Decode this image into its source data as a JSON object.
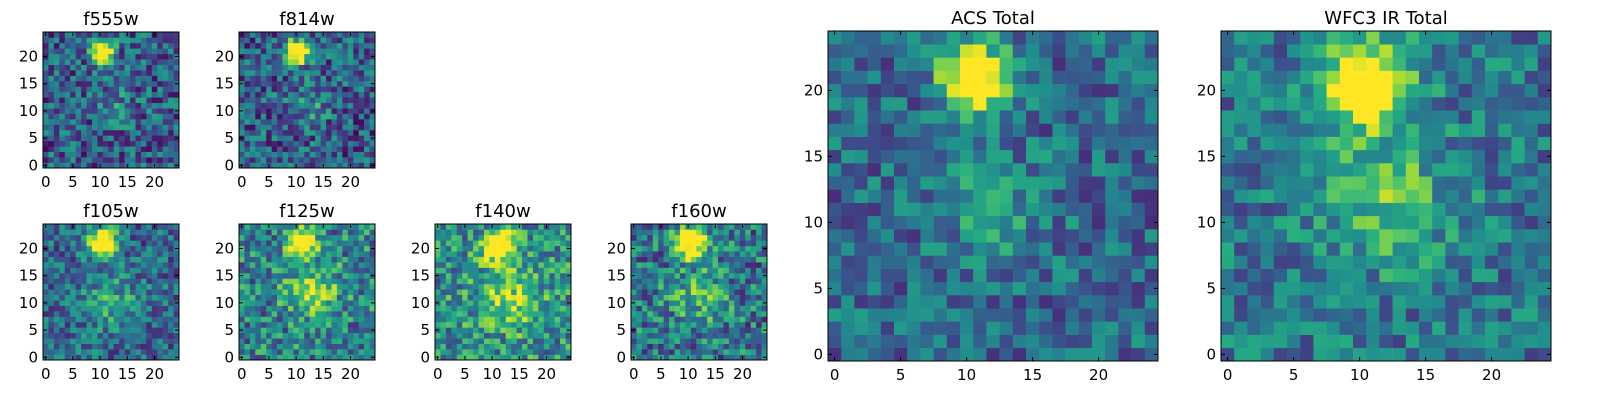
{
  "chart_data": [
    {
      "id": "f555w",
      "type": "heatmap",
      "title": "f555w",
      "xticks": [
        "0",
        "5",
        "10",
        "15",
        "20"
      ],
      "yticks": [
        "0",
        "5",
        "10",
        "15",
        "20"
      ],
      "xlim": [
        0,
        25
      ],
      "ylim": [
        0,
        25
      ],
      "colormap": "viridis",
      "source": {
        "x": 10.5,
        "y": 21,
        "strength": 1.0,
        "width": 1.5
      },
      "core": {
        "x": 13,
        "y": 11,
        "strength": 0.15,
        "width": 3
      },
      "background": 0.3,
      "noise": 0.28
    },
    {
      "id": "f814w",
      "type": "heatmap",
      "title": "f814w",
      "xticks": [
        "0",
        "5",
        "10",
        "15",
        "20"
      ],
      "yticks": [
        "0",
        "5",
        "10",
        "15",
        "20"
      ],
      "xlim": [
        0,
        25
      ],
      "ylim": [
        0,
        25
      ],
      "colormap": "viridis",
      "source": {
        "x": 10.5,
        "y": 21,
        "strength": 1.0,
        "width": 1.6
      },
      "core": {
        "x": 12,
        "y": 11,
        "strength": 0.2,
        "width": 3
      },
      "background": 0.3,
      "noise": 0.28
    },
    {
      "id": "f105w",
      "type": "heatmap",
      "title": "f105w",
      "xticks": [
        "0",
        "5",
        "10",
        "15",
        "20"
      ],
      "yticks": [
        "0",
        "5",
        "10",
        "15",
        "20"
      ],
      "xlim": [
        0,
        25
      ],
      "ylim": [
        0,
        25
      ],
      "colormap": "viridis",
      "source": {
        "x": 10.5,
        "y": 21,
        "strength": 1.0,
        "width": 1.8
      },
      "core": {
        "x": 12,
        "y": 10,
        "strength": 0.25,
        "width": 3.5
      },
      "background": 0.35,
      "noise": 0.25
    },
    {
      "id": "f125w",
      "type": "heatmap",
      "title": "f125w",
      "xticks": [
        "0",
        "5",
        "10",
        "15",
        "20"
      ],
      "yticks": [
        "0",
        "5",
        "10",
        "15",
        "20"
      ],
      "xlim": [
        0,
        25
      ],
      "ylim": [
        0,
        25
      ],
      "colormap": "viridis",
      "source": {
        "x": 11,
        "y": 21,
        "strength": 0.9,
        "width": 1.9
      },
      "core": {
        "x": 13,
        "y": 12,
        "strength": 0.35,
        "width": 3.5
      },
      "background": 0.45,
      "noise": 0.3
    },
    {
      "id": "f140w",
      "type": "heatmap",
      "title": "f140w",
      "xticks": [
        "0",
        "5",
        "10",
        "15",
        "20"
      ],
      "yticks": [
        "0",
        "5",
        "10",
        "15",
        "20"
      ],
      "xlim": [
        0,
        25
      ],
      "ylim": [
        0,
        25
      ],
      "colormap": "viridis",
      "source": {
        "x": 11.5,
        "y": 20.5,
        "strength": 0.85,
        "width": 2
      },
      "core": {
        "x": 13,
        "y": 11,
        "strength": 0.35,
        "width": 4
      },
      "background": 0.5,
      "noise": 0.3
    },
    {
      "id": "f160w",
      "type": "heatmap",
      "title": "f160w",
      "xticks": [
        "0",
        "5",
        "10",
        "15",
        "20"
      ],
      "yticks": [
        "0",
        "5",
        "10",
        "15",
        "20"
      ],
      "xlim": [
        0,
        25
      ],
      "ylim": [
        0,
        25
      ],
      "colormap": "viridis",
      "source": {
        "x": 10.5,
        "y": 21,
        "strength": 1.0,
        "width": 1.9
      },
      "core": {
        "x": 12,
        "y": 11,
        "strength": 0.3,
        "width": 3.5
      },
      "background": 0.4,
      "noise": 0.3
    },
    {
      "id": "acs_total",
      "type": "heatmap",
      "title": "ACS Total",
      "xticks": [
        "0",
        "5",
        "10",
        "15",
        "20"
      ],
      "yticks": [
        "0",
        "5",
        "10",
        "15",
        "20"
      ],
      "xlim": [
        0,
        25
      ],
      "ylim": [
        0,
        25
      ],
      "colormap": "viridis",
      "source": {
        "x": 10.5,
        "y": 21,
        "strength": 1.0,
        "width": 1.7
      },
      "core": {
        "x": 12,
        "y": 11,
        "strength": 0.2,
        "width": 3
      },
      "background": 0.35,
      "noise": 0.22
    },
    {
      "id": "wfc3_ir_total",
      "type": "heatmap",
      "title": "WFC3 IR Total",
      "xticks": [
        "0",
        "5",
        "10",
        "15",
        "20"
      ],
      "yticks": [
        "0",
        "5",
        "10",
        "15",
        "20"
      ],
      "xlim": [
        0,
        25
      ],
      "ylim": [
        0,
        25
      ],
      "colormap": "viridis",
      "source": {
        "x": 10.5,
        "y": 20.5,
        "strength": 1.0,
        "width": 2.1
      },
      "core": {
        "x": 12,
        "y": 12,
        "strength": 0.35,
        "width": 3.5
      },
      "background": 0.4,
      "noise": 0.22
    }
  ]
}
